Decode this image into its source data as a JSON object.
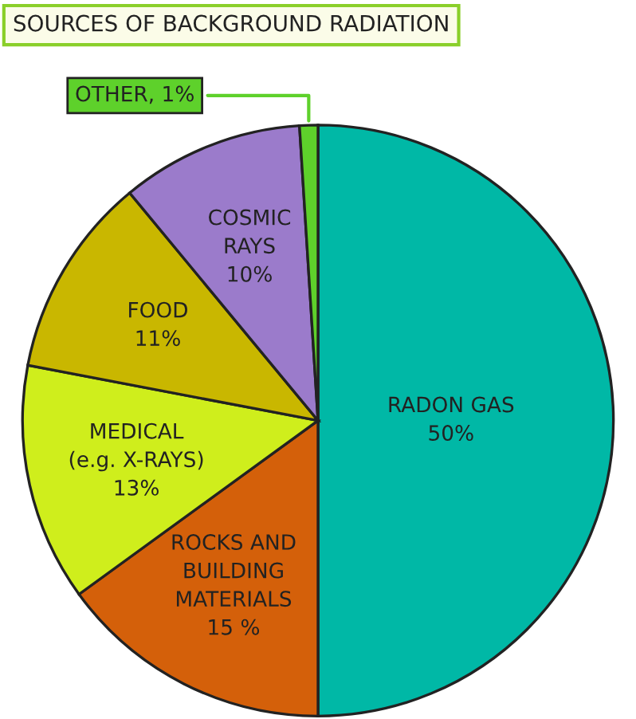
{
  "chart_data": {
    "type": "pie",
    "title": "SOURCES OF BACKGROUND RADIATION",
    "categories": [
      "RADON GAS",
      "ROCKS AND\nBUILDING\nMATERIALS",
      "MEDICAL\n(e.g. X-RAYS)",
      "FOOD",
      "COSMIC\nRAYS",
      "OTHER"
    ],
    "values": [
      50,
      15,
      13,
      11,
      10,
      1
    ],
    "value_labels": [
      "50%",
      "15 %",
      "13%",
      "11%",
      "10%",
      "1%"
    ],
    "colors": [
      "#00b8a6",
      "#d4600a",
      "#cfee1c",
      "#c9b700",
      "#9b7bcb",
      "#5ed12b"
    ]
  }
}
